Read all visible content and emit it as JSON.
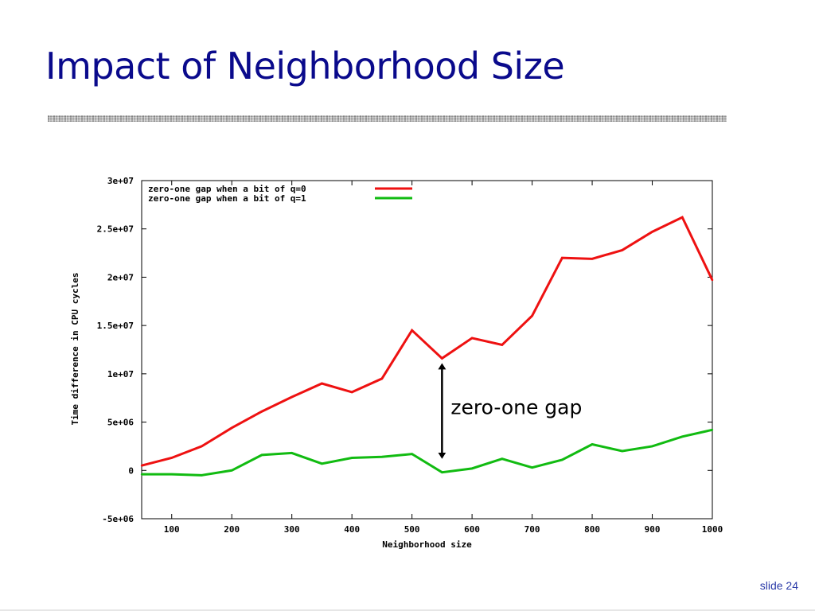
{
  "slide": {
    "title": "Impact of Neighborhood Size",
    "number_label": "slide 24"
  },
  "chart_data": {
    "type": "line",
    "title": "",
    "xlabel": "Neighborhood size",
    "ylabel": "Time difference in CPU cycles",
    "xlim": [
      50,
      1000
    ],
    "ylim": [
      -5000000,
      30000000
    ],
    "x_ticks": [
      100,
      200,
      300,
      400,
      500,
      600,
      700,
      800,
      900,
      1000
    ],
    "x_tick_labels": [
      "100",
      "200",
      "300",
      "400",
      "500",
      "600",
      "700",
      "800",
      "900",
      "1000"
    ],
    "y_ticks": [
      -5000000,
      0,
      5000000,
      10000000,
      15000000,
      20000000,
      25000000,
      30000000
    ],
    "y_tick_labels": [
      "-5e+06",
      "0",
      "5e+06",
      "1e+07",
      "1.5e+07",
      "2e+07",
      "2.5e+07",
      "3e+07"
    ],
    "grid": false,
    "legend_position": "top-left",
    "x": [
      50,
      100,
      150,
      200,
      250,
      300,
      350,
      400,
      450,
      500,
      550,
      600,
      650,
      700,
      750,
      800,
      850,
      900,
      950,
      1000
    ],
    "series": [
      {
        "name": "zero-one gap when a bit of q=0",
        "color": "#ee1111",
        "values": [
          500000,
          1300000,
          2500000,
          4400000,
          6100000,
          7600000,
          9000000,
          8100000,
          9500000,
          14500000,
          11600000,
          13700000,
          13000000,
          16000000,
          22000000,
          21900000,
          22800000,
          24700000,
          26200000,
          19700000
        ]
      },
      {
        "name": "zero-one gap when a bit of q=1",
        "color": "#11bb11",
        "values": [
          -400000,
          -400000,
          -500000,
          0,
          1600000,
          1800000,
          700000,
          1300000,
          1400000,
          1700000,
          -200000,
          200000,
          1200000,
          300000,
          1100000,
          2700000,
          2000000,
          2500000,
          3500000,
          4200000
        ]
      }
    ],
    "annotations": [
      {
        "text": "zero-one gap",
        "type": "double-arrow",
        "x": 550,
        "from": 11600000,
        "to": 700000
      }
    ]
  }
}
